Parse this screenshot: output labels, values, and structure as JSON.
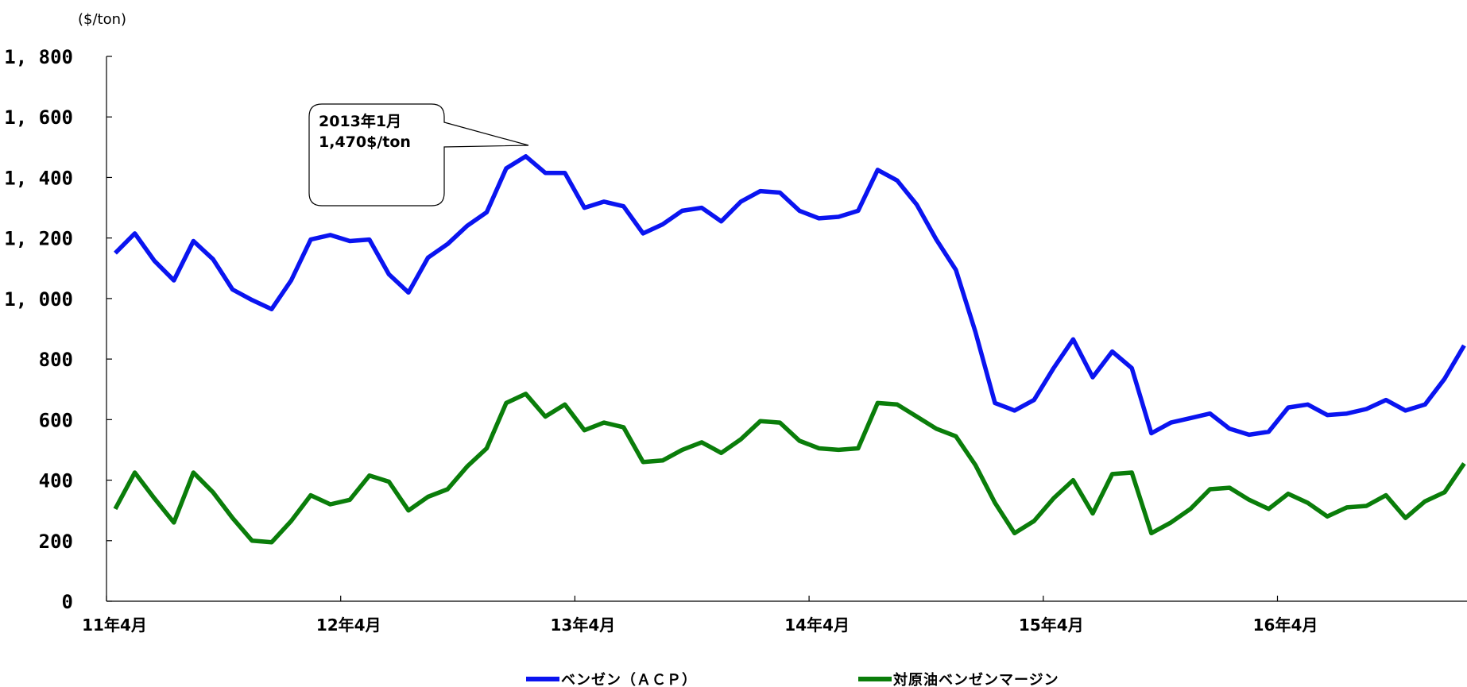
{
  "chart_data": {
    "type": "line",
    "unit_label": "($/ton)",
    "ylim": [
      0,
      1800
    ],
    "yticks": [
      0,
      200,
      400,
      600,
      800,
      1000,
      1200,
      1400,
      1600,
      1800
    ],
    "ytick_labels": [
      "0",
      "200",
      "400",
      "600",
      "800",
      "1, 000",
      "1, 200",
      "1, 400",
      "1, 600",
      "1, 800"
    ],
    "x_tick_labels": [
      "11年4月",
      "12年4月",
      "13年4月",
      "14年4月",
      "15年4月",
      "16年4月"
    ],
    "grid": false,
    "legend_position": "bottom",
    "colors": {
      "benzene": "#0a14f0",
      "margin": "#0a7d0a"
    },
    "series": [
      {
        "name": "ベンゼン（ＡＣＰ）",
        "values": [
          1150,
          1215,
          1125,
          1060,
          1190,
          1130,
          1030,
          995,
          965,
          1060,
          1195,
          1210,
          1190,
          1195,
          1080,
          1020,
          1135,
          1180,
          1240,
          1285,
          1430,
          1470,
          1415,
          1415,
          1300,
          1320,
          1305,
          1215,
          1245,
          1290,
          1300,
          1255,
          1320,
          1355,
          1350,
          1290,
          1265,
          1270,
          1290,
          1425,
          1390,
          1310,
          1195,
          1095,
          890,
          655,
          630,
          665,
          770,
          865,
          740,
          825,
          770,
          555,
          590,
          605,
          620,
          570,
          550,
          560,
          640,
          650,
          615,
          620,
          635,
          665,
          630,
          650,
          735,
          845
        ]
      },
      {
        "name": "対原油ベンゼンマージン",
        "values": [
          305,
          425,
          340,
          260,
          425,
          360,
          275,
          200,
          195,
          265,
          350,
          320,
          335,
          415,
          395,
          300,
          345,
          370,
          445,
          505,
          655,
          685,
          610,
          650,
          565,
          590,
          575,
          460,
          465,
          500,
          525,
          490,
          535,
          595,
          590,
          530,
          505,
          500,
          505,
          655,
          650,
          610,
          570,
          545,
          450,
          325,
          225,
          265,
          340,
          400,
          290,
          420,
          425,
          225,
          260,
          305,
          370,
          375,
          335,
          305,
          355,
          325,
          280,
          310,
          315,
          350,
          275,
          330,
          360,
          455
        ]
      }
    ],
    "annotation": {
      "line1": "2013年1月",
      "line2": "1,470$/ton",
      "point_index": 21
    }
  }
}
